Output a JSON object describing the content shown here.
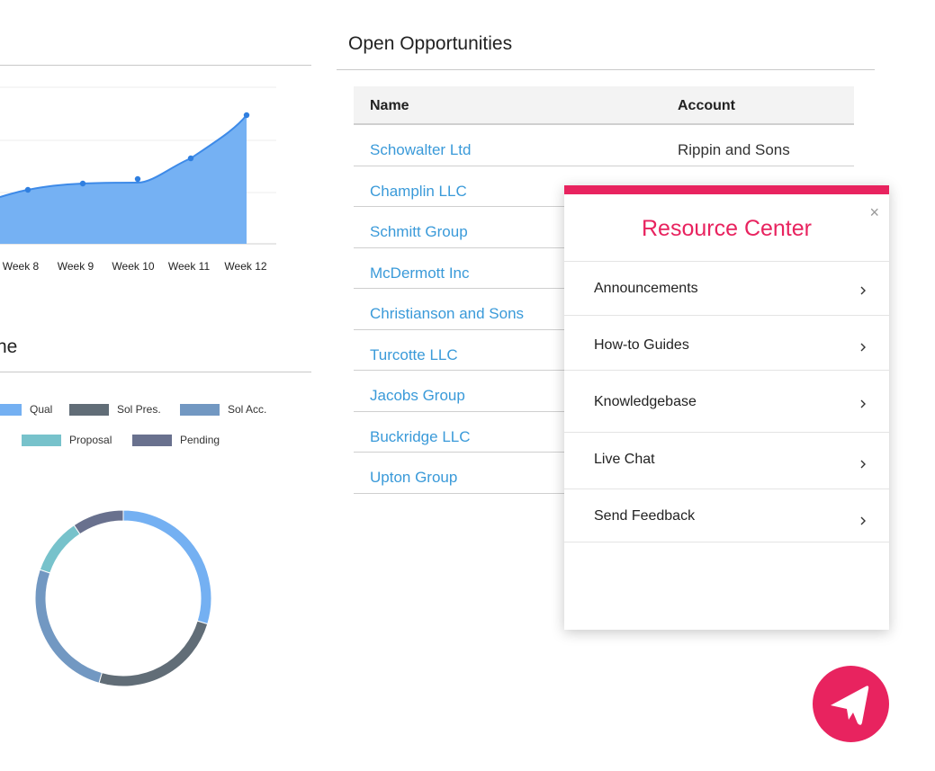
{
  "area_chart": {
    "x_labels": [
      "Week 8",
      "Week 9",
      "Week 10",
      "Week 11",
      "Week 12"
    ],
    "colors": {
      "fill": "#75b1f3",
      "line": "#3d8ae8",
      "point": "#2f7fe0"
    }
  },
  "left_section": {
    "title": "ne"
  },
  "legend": [
    {
      "label": "Qual",
      "color": "#74b0f2"
    },
    {
      "label": "Sol Pres.",
      "color": "#616d77"
    },
    {
      "label": "Sol Acc.",
      "color": "#7298c2"
    },
    {
      "label": "Proposal",
      "color": "#77c2cb"
    },
    {
      "label": "Pending",
      "color": "#69718e"
    }
  ],
  "opportunities": {
    "title": "Open Opportunities",
    "columns": [
      "Name",
      "Account"
    ],
    "rows": [
      {
        "name": "Schowalter Ltd",
        "account": "Rippin and Sons"
      },
      {
        "name": "Champlin LLC",
        "account": ""
      },
      {
        "name": "Schmitt Group",
        "account": ""
      },
      {
        "name": "McDermott Inc",
        "account": ""
      },
      {
        "name": "Christianson and Sons",
        "account": ""
      },
      {
        "name": "Turcotte LLC",
        "account": ""
      },
      {
        "name": "Jacobs Group",
        "account": ""
      },
      {
        "name": "Buckridge LLC",
        "account": ""
      },
      {
        "name": "Upton Group",
        "account": ""
      }
    ]
  },
  "resource_center": {
    "title": "Resource Center",
    "close_symbol": "×",
    "items": [
      {
        "label": "Announcements",
        "icon": "chevron-right-icon"
      },
      {
        "label": "How-to Guides",
        "icon": "chevron-right-icon"
      },
      {
        "label": "Knowledgebase",
        "icon": "chevron-right-icon"
      },
      {
        "label": "Live Chat",
        "icon": "chevron-right-icon"
      },
      {
        "label": "Send Feedback",
        "icon": "chevron-right-icon"
      }
    ],
    "accent_color": "#e8235f"
  },
  "launcher": {
    "icon": "arrow-icon",
    "color": "#e8235f"
  }
}
